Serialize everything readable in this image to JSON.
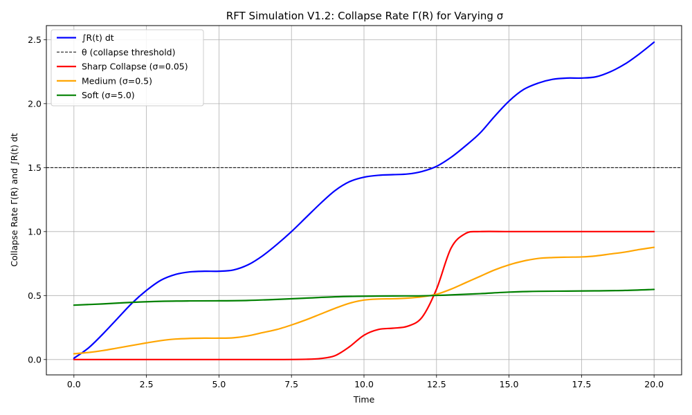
{
  "chart_data": {
    "type": "line",
    "title": "RFT Simulation V1.2: Collapse Rate Γ(R) for Varying σ",
    "xlabel": "Time",
    "ylabel": "Collapse Rate Γ(R) and ∫R(t) dt",
    "xlim": [
      -0.95,
      20.95
    ],
    "ylim": [
      -0.12,
      2.61
    ],
    "xticks": [
      0.0,
      2.5,
      5.0,
      7.5,
      10.0,
      12.5,
      15.0,
      17.5,
      20.0
    ],
    "xtick_labels": [
      "0.0",
      "2.5",
      "5.0",
      "7.5",
      "10.0",
      "12.5",
      "15.0",
      "17.5",
      "20.0"
    ],
    "yticks": [
      0.0,
      0.5,
      1.0,
      1.5,
      2.0,
      2.5
    ],
    "ytick_labels": [
      "0.0",
      "0.5",
      "1.0",
      "1.5",
      "2.0",
      "2.5"
    ],
    "grid": true,
    "legend_position": "top-left",
    "threshold": {
      "name": "θ (collapse threshold)",
      "value": 1.5,
      "color": "#000000",
      "style": "dashed"
    },
    "series": [
      {
        "name": "∫R(t) dt",
        "color": "#0000ff",
        "x": [
          0,
          0.5,
          1,
          1.5,
          2,
          2.5,
          3,
          3.5,
          4,
          4.5,
          5,
          5.5,
          6,
          6.5,
          7,
          7.5,
          8,
          8.5,
          9,
          9.5,
          10,
          10.5,
          11,
          11.5,
          12,
          12.5,
          13,
          13.5,
          14,
          14.5,
          15,
          15.5,
          16,
          16.5,
          17,
          17.5,
          18,
          18.5,
          19,
          19.5,
          20
        ],
        "y": [
          0.01,
          0.09,
          0.2,
          0.32,
          0.44,
          0.54,
          0.62,
          0.665,
          0.685,
          0.69,
          0.69,
          0.7,
          0.74,
          0.81,
          0.9,
          1.0,
          1.11,
          1.22,
          1.32,
          1.39,
          1.425,
          1.44,
          1.445,
          1.45,
          1.47,
          1.51,
          1.58,
          1.67,
          1.77,
          1.9,
          2.02,
          2.11,
          2.16,
          2.19,
          2.2,
          2.2,
          2.21,
          2.25,
          2.31,
          2.39,
          2.48
        ]
      },
      {
        "name": "Sharp Collapse (σ=0.05)",
        "color": "#ff0000",
        "x": [
          0,
          1,
          2,
          3,
          4,
          5,
          6,
          7,
          8,
          8.5,
          9,
          9.5,
          10,
          10.5,
          11,
          11.5,
          12,
          12.5,
          13,
          13.5,
          14,
          15,
          16,
          17,
          18,
          19,
          20
        ],
        "y": [
          0,
          0,
          0,
          0,
          0,
          0,
          0,
          0,
          0.002,
          0.008,
          0.03,
          0.1,
          0.19,
          0.235,
          0.245,
          0.26,
          0.33,
          0.55,
          0.87,
          0.985,
          1.0,
          1.0,
          1.0,
          1.0,
          1.0,
          1.0,
          1.0
        ]
      },
      {
        "name": "Medium (σ=0.5)",
        "color": "#ffa500",
        "x": [
          0,
          0.5,
          1,
          1.5,
          2,
          2.5,
          3,
          3.5,
          4,
          4.5,
          5,
          5.5,
          6,
          6.5,
          7,
          7.5,
          8,
          8.5,
          9,
          9.5,
          10,
          10.5,
          11,
          11.5,
          12,
          12.5,
          13,
          13.5,
          14,
          14.5,
          15,
          15.5,
          16,
          16.5,
          17,
          17.5,
          18,
          18.5,
          19,
          19.5,
          20
        ],
        "y": [
          0.045,
          0.055,
          0.07,
          0.09,
          0.11,
          0.13,
          0.148,
          0.16,
          0.165,
          0.167,
          0.167,
          0.17,
          0.185,
          0.21,
          0.235,
          0.27,
          0.31,
          0.355,
          0.4,
          0.44,
          0.465,
          0.473,
          0.475,
          0.48,
          0.49,
          0.51,
          0.55,
          0.6,
          0.65,
          0.7,
          0.74,
          0.77,
          0.79,
          0.797,
          0.8,
          0.802,
          0.81,
          0.825,
          0.84,
          0.86,
          0.877
        ]
      },
      {
        "name": "Soft (σ=5.0)",
        "color": "#008000",
        "x": [
          0,
          1,
          2,
          3,
          4,
          5,
          6,
          7,
          8,
          9,
          10,
          11,
          12,
          13,
          14,
          15,
          16,
          17,
          18,
          19,
          20
        ],
        "y": [
          0.425,
          0.435,
          0.447,
          0.455,
          0.458,
          0.459,
          0.462,
          0.47,
          0.48,
          0.49,
          0.495,
          0.497,
          0.498,
          0.505,
          0.515,
          0.527,
          0.533,
          0.535,
          0.537,
          0.54,
          0.548
        ]
      }
    ]
  }
}
